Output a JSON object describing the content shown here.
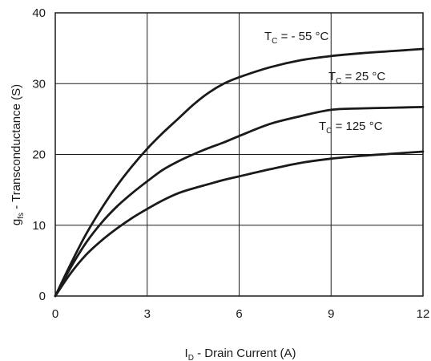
{
  "chart_data": {
    "type": "line",
    "xlabel": {
      "main": "I",
      "sub": "D",
      "rest": " - Drain Current (A)"
    },
    "ylabel": {
      "main": "g",
      "sub": "fs",
      "rest": " - Transconductance (S)"
    },
    "xlim": [
      0,
      12
    ],
    "ylim": [
      0,
      40
    ],
    "xticks": [
      "0",
      "3",
      "6",
      "9",
      "12"
    ],
    "yticks": [
      "0",
      "10",
      "20",
      "30",
      "40"
    ],
    "grid": true,
    "series": [
      {
        "name": "T_C = - 55 °C",
        "label": {
          "main": "T",
          "sub": "C",
          "rest": " = - 55 °C"
        },
        "x": [
          0,
          0.5,
          1,
          1.5,
          2,
          2.5,
          3,
          3.5,
          4,
          4.5,
          5,
          5.5,
          6,
          7,
          8,
          9,
          10,
          11,
          12
        ],
        "y": [
          0,
          4.5,
          8.7,
          12.3,
          15.5,
          18.3,
          20.8,
          23.0,
          25.0,
          27.0,
          28.7,
          30.0,
          30.9,
          32.3,
          33.3,
          33.9,
          34.3,
          34.6,
          34.9
        ]
      },
      {
        "name": "T_C = 25 °C",
        "label": {
          "main": "T",
          "sub": "C",
          "rest": " = 25 °C"
        },
        "x": [
          0,
          0.5,
          1,
          1.5,
          2,
          2.5,
          3,
          3.5,
          4,
          4.5,
          5,
          5.5,
          6,
          7,
          8,
          9,
          10,
          11,
          12
        ],
        "y": [
          0,
          4.0,
          7.5,
          10.3,
          12.6,
          14.5,
          16.2,
          17.8,
          19.0,
          20.0,
          20.9,
          21.7,
          22.6,
          24.3,
          25.4,
          26.3,
          26.5,
          26.6,
          26.7
        ]
      },
      {
        "name": "T_C = 125 °C",
        "label": {
          "main": "T",
          "sub": "C",
          "rest": " = 125 °C"
        },
        "x": [
          0,
          0.5,
          1,
          1.5,
          2,
          2.5,
          3,
          3.5,
          4,
          4.5,
          5,
          5.5,
          6,
          7,
          8,
          9,
          10,
          11,
          12
        ],
        "y": [
          0,
          3.2,
          5.8,
          7.8,
          9.5,
          11.0,
          12.3,
          13.5,
          14.5,
          15.2,
          15.8,
          16.4,
          16.9,
          17.9,
          18.8,
          19.4,
          19.8,
          20.1,
          20.4
        ]
      }
    ]
  }
}
